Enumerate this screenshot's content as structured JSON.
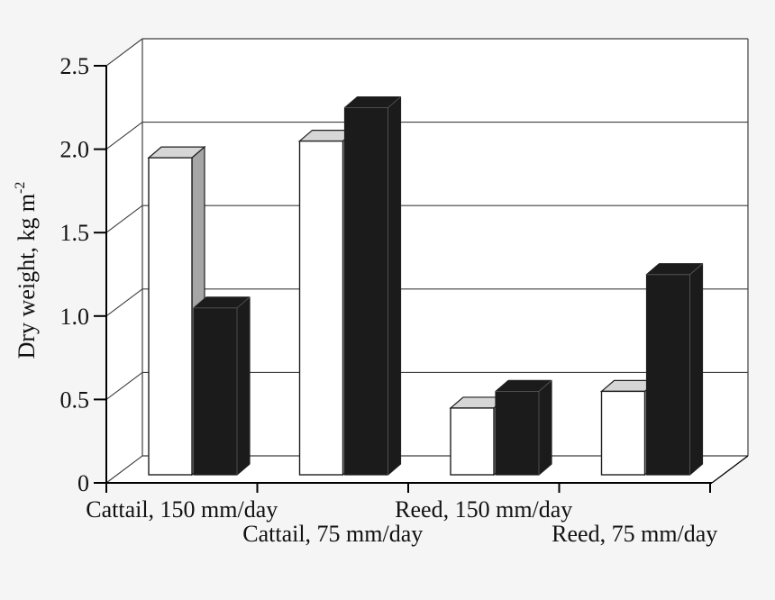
{
  "figure": {
    "page_background": "#f5f5f5",
    "plot_background": "#ffffff"
  },
  "chart_data": {
    "type": "bar",
    "style": "3d-column-pairs",
    "title": "",
    "xlabel": "",
    "ylabel": "Dry weight, kg m⁻²",
    "ylabel_base": "Dry weight, kg m",
    "ylabel_exponent": "-2",
    "categories": [
      "Cattail, 150 mm/day",
      "Cattail, 75 mm/day",
      "Reed, 150 mm/day",
      "Reed, 75 mm/day"
    ],
    "series": [
      {
        "name": "white-bars",
        "fill": "#ffffff",
        "values": [
          1.9,
          2.0,
          0.4,
          0.5
        ]
      },
      {
        "name": "black-bars",
        "fill": "#1b1b1b",
        "values": [
          1.0,
          2.2,
          0.5,
          1.2
        ]
      }
    ],
    "ylim": [
      0,
      2.5
    ],
    "ytick_step": 0.5,
    "yticks": [
      "0",
      "0.5",
      "1.0",
      "1.5",
      "2.0",
      "2.5"
    ],
    "grid": true,
    "legend": "none"
  },
  "colors": {
    "axis_line": "#000000",
    "grid_line": "#3f3f3f",
    "bar_outline": "#1f1f1f",
    "white_bar_front": "#ffffff",
    "white_bar_top": "#d6d6d6",
    "white_bar_side": "#a6a6a6",
    "black_bar": "#1b1b1b",
    "black_bar_inner_edge": "#555555"
  }
}
